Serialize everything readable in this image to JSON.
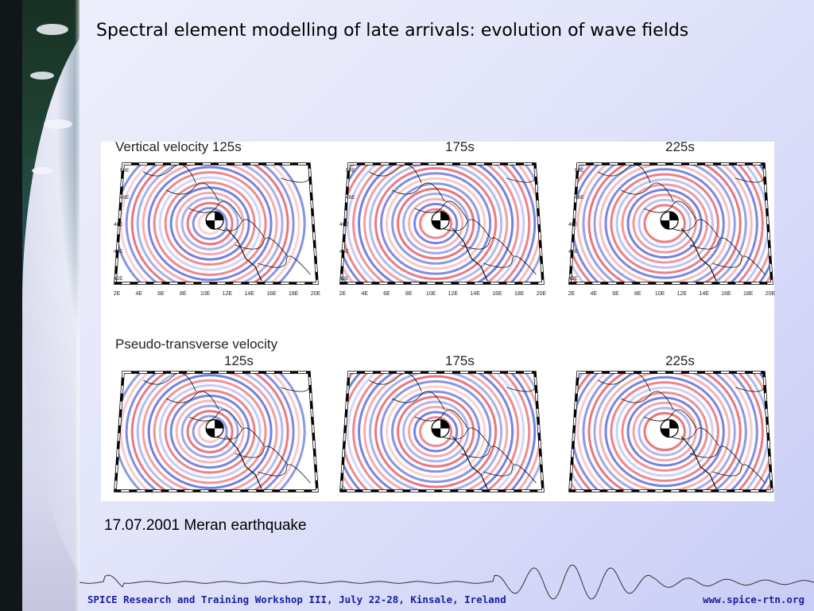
{
  "slide": {
    "title": "Spectral element modelling of late arrivals: evolution of wave fields",
    "caption": "17.07.2001 Meran earthquake"
  },
  "figure": {
    "row1_label": "Vertical velocity 125s",
    "row2_label_line1": "Pseudo-transverse velocity",
    "row2_label_line2": "125s",
    "time_175": "175s",
    "time_225": "225s",
    "lon_ticks": [
      "2E",
      "4E",
      "6E",
      "8E",
      "10E",
      "12E",
      "14E",
      "16E",
      "18E",
      "20E"
    ],
    "lat_ticks": [
      "50E",
      "48E",
      "46E",
      "44E",
      "42E"
    ],
    "colors": {
      "positive": "#e8505a",
      "negative": "#4f5fd8"
    }
  },
  "footer": {
    "left": "SPICE Research and Training Workshop III, July 22-28, Kinsale, Ireland",
    "right": "www.spice-rtn.org"
  }
}
